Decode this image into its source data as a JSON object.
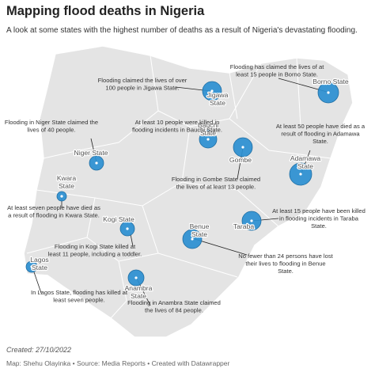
{
  "header": {
    "title": "Mapping flood deaths in Nigeria",
    "subtitle": "A look at some states with the highest number of deaths as a result of Nigeria's devastating flooding."
  },
  "states": [
    {
      "name": [
        "Jigawa",
        "State"
      ],
      "note": [
        "Flooding claimed the lives of over",
        "100 people in Jigawa State."
      ]
    },
    {
      "name": [
        "Borno State"
      ],
      "note": [
        "Flooding has claimed the lives of at",
        "least 15 people in Borno State."
      ]
    },
    {
      "name": [
        "Niger State"
      ],
      "note": [
        "Flooding in Niger State claimed the",
        "lives of 40 people."
      ]
    },
    {
      "name": [
        "Bauchi",
        "State"
      ],
      "note": [
        "At least 10 people were killed in",
        "flooding incidents in Bauchi State."
      ]
    },
    {
      "name": [
        "Gombe"
      ],
      "note": [
        "Flooding in Gombe State claimed",
        "the lives of at least 13 people."
      ]
    },
    {
      "name": [
        "Adamawa",
        "State"
      ],
      "note": [
        "At least 50 people have died as a",
        "result of flooding in Adamawa",
        "State."
      ]
    },
    {
      "name": [
        "Kwara",
        "State"
      ],
      "note": [
        "At least seven people have died as",
        "a result of flooding in Kwara State."
      ]
    },
    {
      "name": [
        "Taraba"
      ],
      "note": [
        "At least 15 people have been killed",
        "in flooding incidents in Taraba",
        "State."
      ]
    },
    {
      "name": [
        "Kogi State"
      ],
      "note": [
        "Flooding in Kogi State killed at",
        "least 11 people, including a toddler."
      ]
    },
    {
      "name": [
        "Benue",
        "State"
      ],
      "note": [
        "No fewer than 24 persons have lost",
        "their lives to flooding in Benue",
        "State."
      ]
    },
    {
      "name": [
        "Lagos",
        "State"
      ],
      "note": [
        "In Lagos State, flooding has killed at",
        "least seven people."
      ]
    },
    {
      "name": [
        "Anambra",
        "State"
      ],
      "note": [
        "Flooding in Anambra State claimed",
        "the lives of 84 people."
      ]
    }
  ],
  "footer": {
    "created": "Created: 27/10/2022",
    "credits": "Map: Shehu Olayinka • Source: Media Reports • Created with Datawrapper"
  }
}
